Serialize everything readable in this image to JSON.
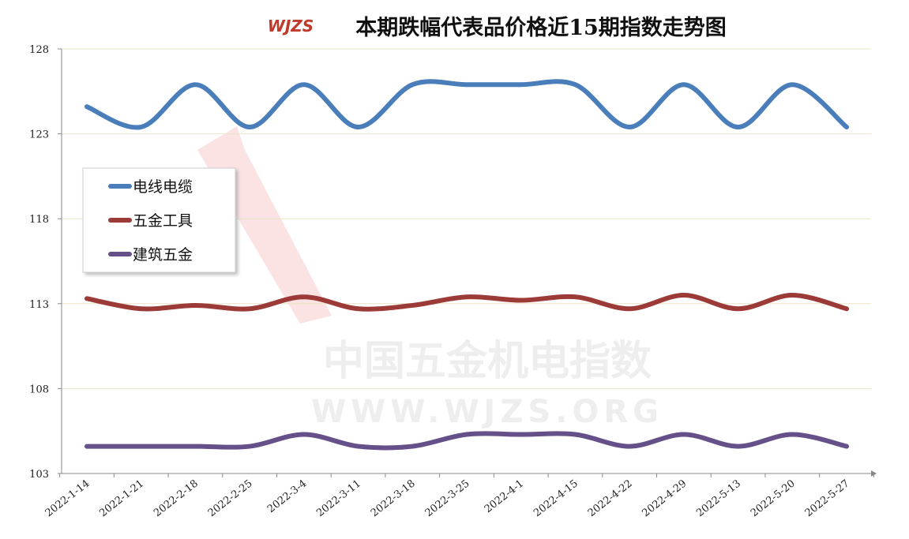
{
  "chart_data": {
    "type": "line",
    "title": "本期跌幅代表品价格近15期指数走势图",
    "logo": "WJZS",
    "watermark": [
      "中国五金机电指数",
      "WWW.WJZS.ORG"
    ],
    "categories": [
      "2022-1-14",
      "2022-1-21",
      "2022-2-18",
      "2022-2-25",
      "2022-3-4",
      "2022-3-11",
      "2022-3-18",
      "2022-3-25",
      "2022-4-1",
      "2022-4-15",
      "2022-4-22",
      "2022-4-29",
      "2022-5-13",
      "2022-5-20",
      "2022-5-27"
    ],
    "series": [
      {
        "name": "电线电缆",
        "color": "#4a7ebb",
        "values": [
          124.6,
          123.4,
          125.9,
          123.4,
          125.9,
          123.4,
          125.9,
          125.9,
          125.9,
          125.9,
          123.4,
          125.9,
          123.4,
          125.9,
          123.4
        ]
      },
      {
        "name": "五金工具",
        "color": "#9b3a36",
        "values": [
          113.3,
          112.7,
          112.9,
          112.7,
          113.4,
          112.7,
          112.9,
          113.4,
          113.2,
          113.4,
          112.7,
          113.5,
          112.7,
          113.5,
          112.7
        ]
      },
      {
        "name": "建筑五金",
        "color": "#65508a",
        "values": [
          104.6,
          104.6,
          104.6,
          104.6,
          105.3,
          104.6,
          104.6,
          105.3,
          105.3,
          105.3,
          104.6,
          105.3,
          104.6,
          105.3,
          104.6
        ]
      }
    ],
    "ylim": [
      103,
      128
    ],
    "yticks": [
      103,
      108,
      113,
      118,
      123,
      128
    ],
    "grid": true,
    "smooth": true,
    "legend": "left"
  }
}
